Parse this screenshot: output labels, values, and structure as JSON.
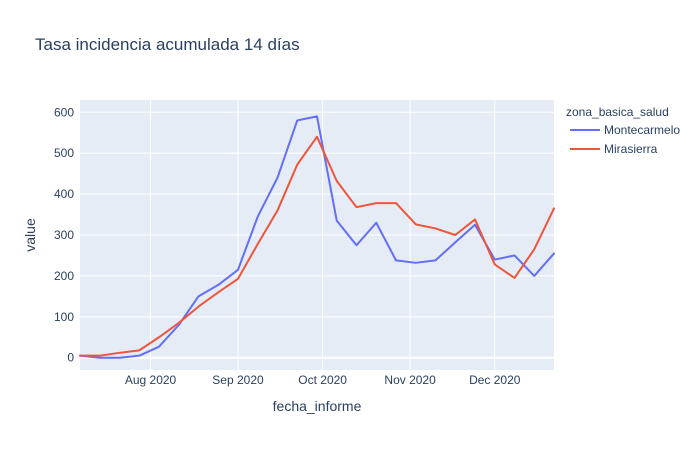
{
  "chart_data": {
    "type": "line",
    "title": "Tasa incidencia acumulada 14 días",
    "xlabel": "fecha_informe",
    "ylabel": "value",
    "x_tick_labels": [
      {
        "date": "2020-08-01",
        "label": "Aug 2020"
      },
      {
        "date": "2020-09-01",
        "label": "Sep 2020"
      },
      {
        "date": "2020-10-01",
        "label": "Oct 2020"
      },
      {
        "date": "2020-11-01",
        "label": "Nov 2020"
      },
      {
        "date": "2020-12-01",
        "label": "Dec 2020"
      }
    ],
    "y_ticks": [
      0,
      100,
      200,
      300,
      400,
      500,
      600
    ],
    "xlim": [
      "2020-07-07",
      "2020-12-22"
    ],
    "ylim": [
      -30,
      630
    ],
    "grid": true,
    "legend_title": "zona_basica_salud",
    "legend_position": "top-right",
    "series": [
      {
        "name": "Montecarmelo",
        "color": "#636efa",
        "points": [
          [
            "2020-07-07",
            5
          ],
          [
            "2020-07-14",
            0
          ],
          [
            "2020-07-21",
            0
          ],
          [
            "2020-07-28",
            5
          ],
          [
            "2020-08-04",
            27
          ],
          [
            "2020-08-11",
            80
          ],
          [
            "2020-08-18",
            150
          ],
          [
            "2020-08-25",
            178
          ],
          [
            "2020-09-01",
            215
          ],
          [
            "2020-09-08",
            345
          ],
          [
            "2020-09-15",
            440
          ],
          [
            "2020-09-22",
            580
          ],
          [
            "2020-09-29",
            590
          ],
          [
            "2020-10-06",
            335
          ],
          [
            "2020-10-13",
            275
          ],
          [
            "2020-10-20",
            330
          ],
          [
            "2020-10-27",
            238
          ],
          [
            "2020-11-03",
            232
          ],
          [
            "2020-11-10",
            238
          ],
          [
            "2020-11-17",
            282
          ],
          [
            "2020-11-24",
            325
          ],
          [
            "2020-12-01",
            240
          ],
          [
            "2020-12-08",
            250
          ],
          [
            "2020-12-15",
            200
          ],
          [
            "2020-12-22",
            255
          ]
        ]
      },
      {
        "name": "Mirasierra",
        "color": "#ef553b",
        "points": [
          [
            "2020-07-07",
            5
          ],
          [
            "2020-07-14",
            5
          ],
          [
            "2020-07-21",
            12
          ],
          [
            "2020-07-28",
            18
          ],
          [
            "2020-08-04",
            50
          ],
          [
            "2020-08-11",
            85
          ],
          [
            "2020-08-18",
            125
          ],
          [
            "2020-08-25",
            160
          ],
          [
            "2020-09-01",
            193
          ],
          [
            "2020-09-08",
            278
          ],
          [
            "2020-09-15",
            360
          ],
          [
            "2020-09-22",
            472
          ],
          [
            "2020-09-29",
            540
          ],
          [
            "2020-10-06",
            432
          ],
          [
            "2020-10-13",
            368
          ],
          [
            "2020-10-20",
            378
          ],
          [
            "2020-10-27",
            378
          ],
          [
            "2020-11-03",
            326
          ],
          [
            "2020-11-10",
            316
          ],
          [
            "2020-11-17",
            300
          ],
          [
            "2020-11-24",
            338
          ],
          [
            "2020-12-01",
            228
          ],
          [
            "2020-12-08",
            195
          ],
          [
            "2020-12-15",
            265
          ],
          [
            "2020-12-22",
            365
          ]
        ]
      }
    ]
  }
}
